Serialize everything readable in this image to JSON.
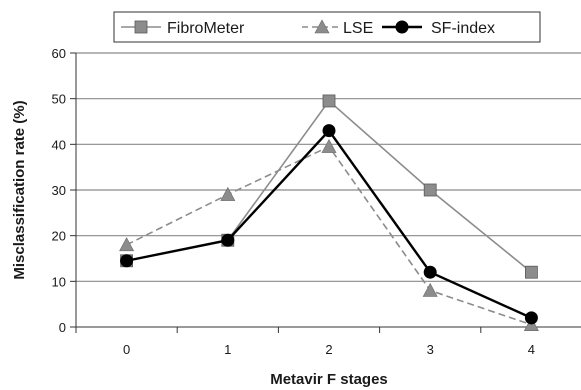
{
  "chart_data": {
    "type": "line",
    "title": "",
    "xlabel": "Metavir F stages",
    "ylabel": "Misclassification rate (%)",
    "categories": [
      "0",
      "1",
      "2",
      "3",
      "4"
    ],
    "ylim": [
      0,
      60
    ],
    "yticks": [
      "0",
      "10",
      "20",
      "30",
      "40",
      "50",
      "60"
    ],
    "grid": "horizontal",
    "legend_position": "top",
    "series": [
      {
        "name": "FibroMeter",
        "values": [
          14.5,
          19,
          49.5,
          30,
          12
        ],
        "color": "#8c8c8c",
        "marker": "square",
        "dash": "solid"
      },
      {
        "name": "LSE",
        "values": [
          18,
          29,
          39.5,
          8,
          0.5
        ],
        "color": "#8c8c8c",
        "marker": "triangle",
        "dash": "dashed"
      },
      {
        "name": "SF-index",
        "values": [
          14.5,
          19,
          43,
          12,
          2
        ],
        "color": "#000000",
        "marker": "circle",
        "dash": "solid"
      }
    ]
  }
}
